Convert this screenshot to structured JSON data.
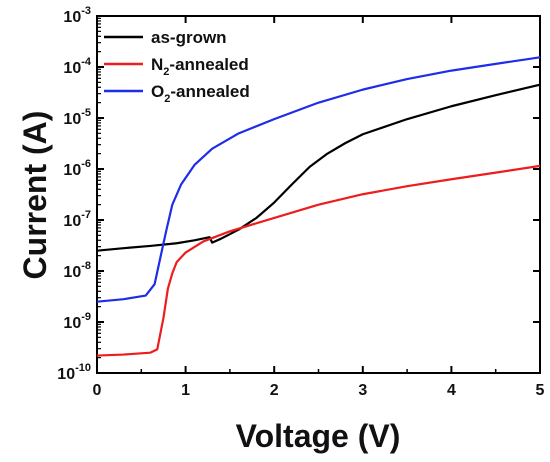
{
  "chart_data": {
    "type": "line",
    "xlabel": "Voltage (V)",
    "ylabel": "Current (A)",
    "xlim": [
      0,
      5
    ],
    "ylim": [
      1e-10,
      0.001
    ],
    "yscale": "log",
    "x_ticks": [
      0,
      1,
      2,
      3,
      4,
      5
    ],
    "y_ticks": [
      {
        "value": 1e-10,
        "base": "10",
        "exp": "-10"
      },
      {
        "value": 1e-09,
        "base": "10",
        "exp": "-9"
      },
      {
        "value": 1e-08,
        "base": "10",
        "exp": "-8"
      },
      {
        "value": 1e-07,
        "base": "10",
        "exp": "-7"
      },
      {
        "value": 1e-06,
        "base": "10",
        "exp": "-6"
      },
      {
        "value": 1e-05,
        "base": "10",
        "exp": "-5"
      },
      {
        "value": 0.0001,
        "base": "10",
        "exp": "-4"
      },
      {
        "value": 0.001,
        "base": "10",
        "exp": "-3"
      }
    ],
    "grid": false,
    "legend_position": "top-left",
    "series": [
      {
        "name": "as-grown",
        "label_main": "as-grown",
        "label_sub": "",
        "label_tail": "",
        "color": "#000000",
        "points": [
          [
            0,
            2.5e-08
          ],
          [
            0.3,
            2.8e-08
          ],
          [
            0.6,
            3.1e-08
          ],
          [
            0.9,
            3.5e-08
          ],
          [
            1.1,
            4e-08
          ],
          [
            1.27,
            4.6e-08
          ],
          [
            1.3,
            3.6e-08
          ],
          [
            1.4,
            4.3e-08
          ],
          [
            1.6,
            6.5e-08
          ],
          [
            1.8,
            1.1e-07
          ],
          [
            2.0,
            2.2e-07
          ],
          [
            2.2,
            5e-07
          ],
          [
            2.4,
            1.1e-06
          ],
          [
            2.6,
            2e-06
          ],
          [
            2.8,
            3.2e-06
          ],
          [
            3.0,
            4.8e-06
          ],
          [
            3.5,
            9.5e-06
          ],
          [
            4.0,
            1.7e-05
          ],
          [
            4.5,
            2.8e-05
          ],
          [
            5.0,
            4.5e-05
          ]
        ]
      },
      {
        "name": "N2-annealed",
        "label_main": "N",
        "label_sub": "2",
        "label_tail": "-annealed",
        "color": "#ee1c1c",
        "points": [
          [
            0,
            2.2e-10
          ],
          [
            0.3,
            2.3e-10
          ],
          [
            0.6,
            2.5e-10
          ],
          [
            0.68,
            2.9e-10
          ],
          [
            0.75,
            1.2e-09
          ],
          [
            0.8,
            4.5e-09
          ],
          [
            0.85,
            9e-09
          ],
          [
            0.9,
            1.5e-08
          ],
          [
            1.0,
            2.3e-08
          ],
          [
            1.2,
            3.8e-08
          ],
          [
            1.5,
            6e-08
          ],
          [
            2.0,
            1.1e-07
          ],
          [
            2.5,
            2e-07
          ],
          [
            3.0,
            3.2e-07
          ],
          [
            3.5,
            4.6e-07
          ],
          [
            4.0,
            6.3e-07
          ],
          [
            4.5,
            8.5e-07
          ],
          [
            5.0,
            1.15e-06
          ]
        ]
      },
      {
        "name": "O2-annealed",
        "label_main": "O",
        "label_sub": "2",
        "label_tail": "-annealed",
        "color": "#1e2de8",
        "points": [
          [
            0,
            2.5e-09
          ],
          [
            0.3,
            2.8e-09
          ],
          [
            0.55,
            3.3e-09
          ],
          [
            0.65,
            5.5e-09
          ],
          [
            0.72,
            2e-08
          ],
          [
            0.78,
            6e-08
          ],
          [
            0.85,
            2e-07
          ],
          [
            0.95,
            5e-07
          ],
          [
            1.1,
            1.2e-06
          ],
          [
            1.3,
            2.5e-06
          ],
          [
            1.6,
            5e-06
          ],
          [
            2.0,
            9.5e-06
          ],
          [
            2.5,
            2e-05
          ],
          [
            3.0,
            3.6e-05
          ],
          [
            3.5,
            5.8e-05
          ],
          [
            4.0,
            8.5e-05
          ],
          [
            4.5,
            0.000115
          ],
          [
            5.0,
            0.000155
          ]
        ]
      }
    ]
  }
}
